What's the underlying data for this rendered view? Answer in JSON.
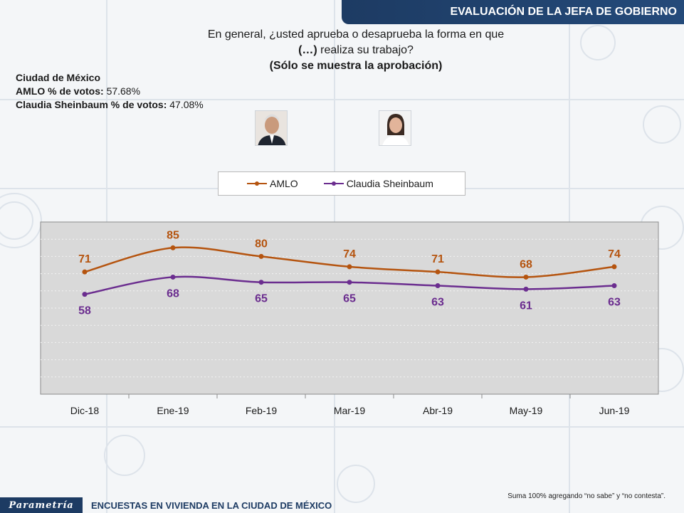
{
  "header": {
    "title": "EVALUACIÓN DE  LA JEFA DE GOBIERNO"
  },
  "question": {
    "line1": "En general, ¿usted aprueba o desaprueba la forma en que",
    "line2_bold": "(…)",
    "line2_rest": " realiza su trabajo?",
    "line3": "(Sólo se muestra la aprobación)"
  },
  "info": {
    "city": "Ciudad de México",
    "amlo_label": "AMLO % de votos: ",
    "amlo_value": "57.68%",
    "sheinbaum_label": "Claudia Sheinbaum % de votos: ",
    "sheinbaum_value": "47.08%"
  },
  "colors": {
    "amlo": "#b5540f",
    "sheinbaum": "#6b2d8f",
    "plot_bg": "#d9d9d9",
    "header": "#1d3b63"
  },
  "chart_data": {
    "type": "line",
    "categories": [
      "Dic-18",
      "Ene-19",
      "Feb-19",
      "Mar-19",
      "Abr-19",
      "May-19",
      "Jun-19"
    ],
    "series": [
      {
        "name": "AMLO",
        "values": [
          71,
          85,
          80,
          74,
          71,
          68,
          74
        ]
      },
      {
        "name": "Claudia Sheinbaum",
        "values": [
          58,
          68,
          65,
          65,
          63,
          61,
          63
        ]
      }
    ],
    "ylim": [
      0,
      100
    ],
    "grid": true,
    "legend": "top-center"
  },
  "footer": {
    "logo": "Parametría",
    "text": "ENCUESTAS EN VIVIENDA EN LA CIUDAD DE MÉXICO",
    "note": "Suma 100%  agregando “no sabe” y “no contesta”."
  }
}
